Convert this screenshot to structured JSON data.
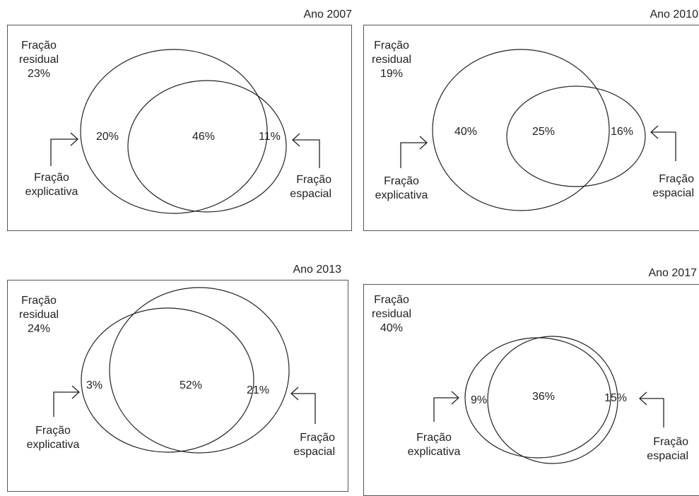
{
  "panels": [
    {
      "year": "Ano 2007",
      "residual_label": [
        "Fração",
        "residual"
      ],
      "residual": "23%",
      "explicativa_only": "20%",
      "shared": "46%",
      "espacial_only": "11%",
      "explicativa_label": [
        "Fração",
        "explicativa"
      ],
      "espacial_label": [
        "Fração",
        "espacial"
      ]
    },
    {
      "year": "Ano 2010",
      "residual_label": [
        "Fração",
        "residual"
      ],
      "residual": "19%",
      "explicativa_only": "40%",
      "shared": "25%",
      "espacial_only": "16%",
      "explicativa_label": [
        "Fração",
        "explicativa"
      ],
      "espacial_label": [
        "Fração",
        "espacial"
      ]
    },
    {
      "year": "Ano 2013",
      "residual_label": [
        "Fração",
        "residual"
      ],
      "residual": "24%",
      "explicativa_only": "3%",
      "shared": "52%",
      "espacial_only": "21%",
      "explicativa_label": [
        "Fração",
        "explicativa"
      ],
      "espacial_label": [
        "Fração",
        "espacial"
      ]
    },
    {
      "year": "Ano 2017",
      "residual_label": [
        "Fração",
        "residual"
      ],
      "residual": "40%",
      "explicativa_only": "9%",
      "shared": "36%",
      "espacial_only": "15%",
      "explicativa_label": [
        "Fração",
        "explicativa"
      ],
      "espacial_label": [
        "Fração",
        "espacial"
      ]
    }
  ],
  "colors": {
    "line": "#222222",
    "box": "#555555",
    "text": "#222222"
  }
}
